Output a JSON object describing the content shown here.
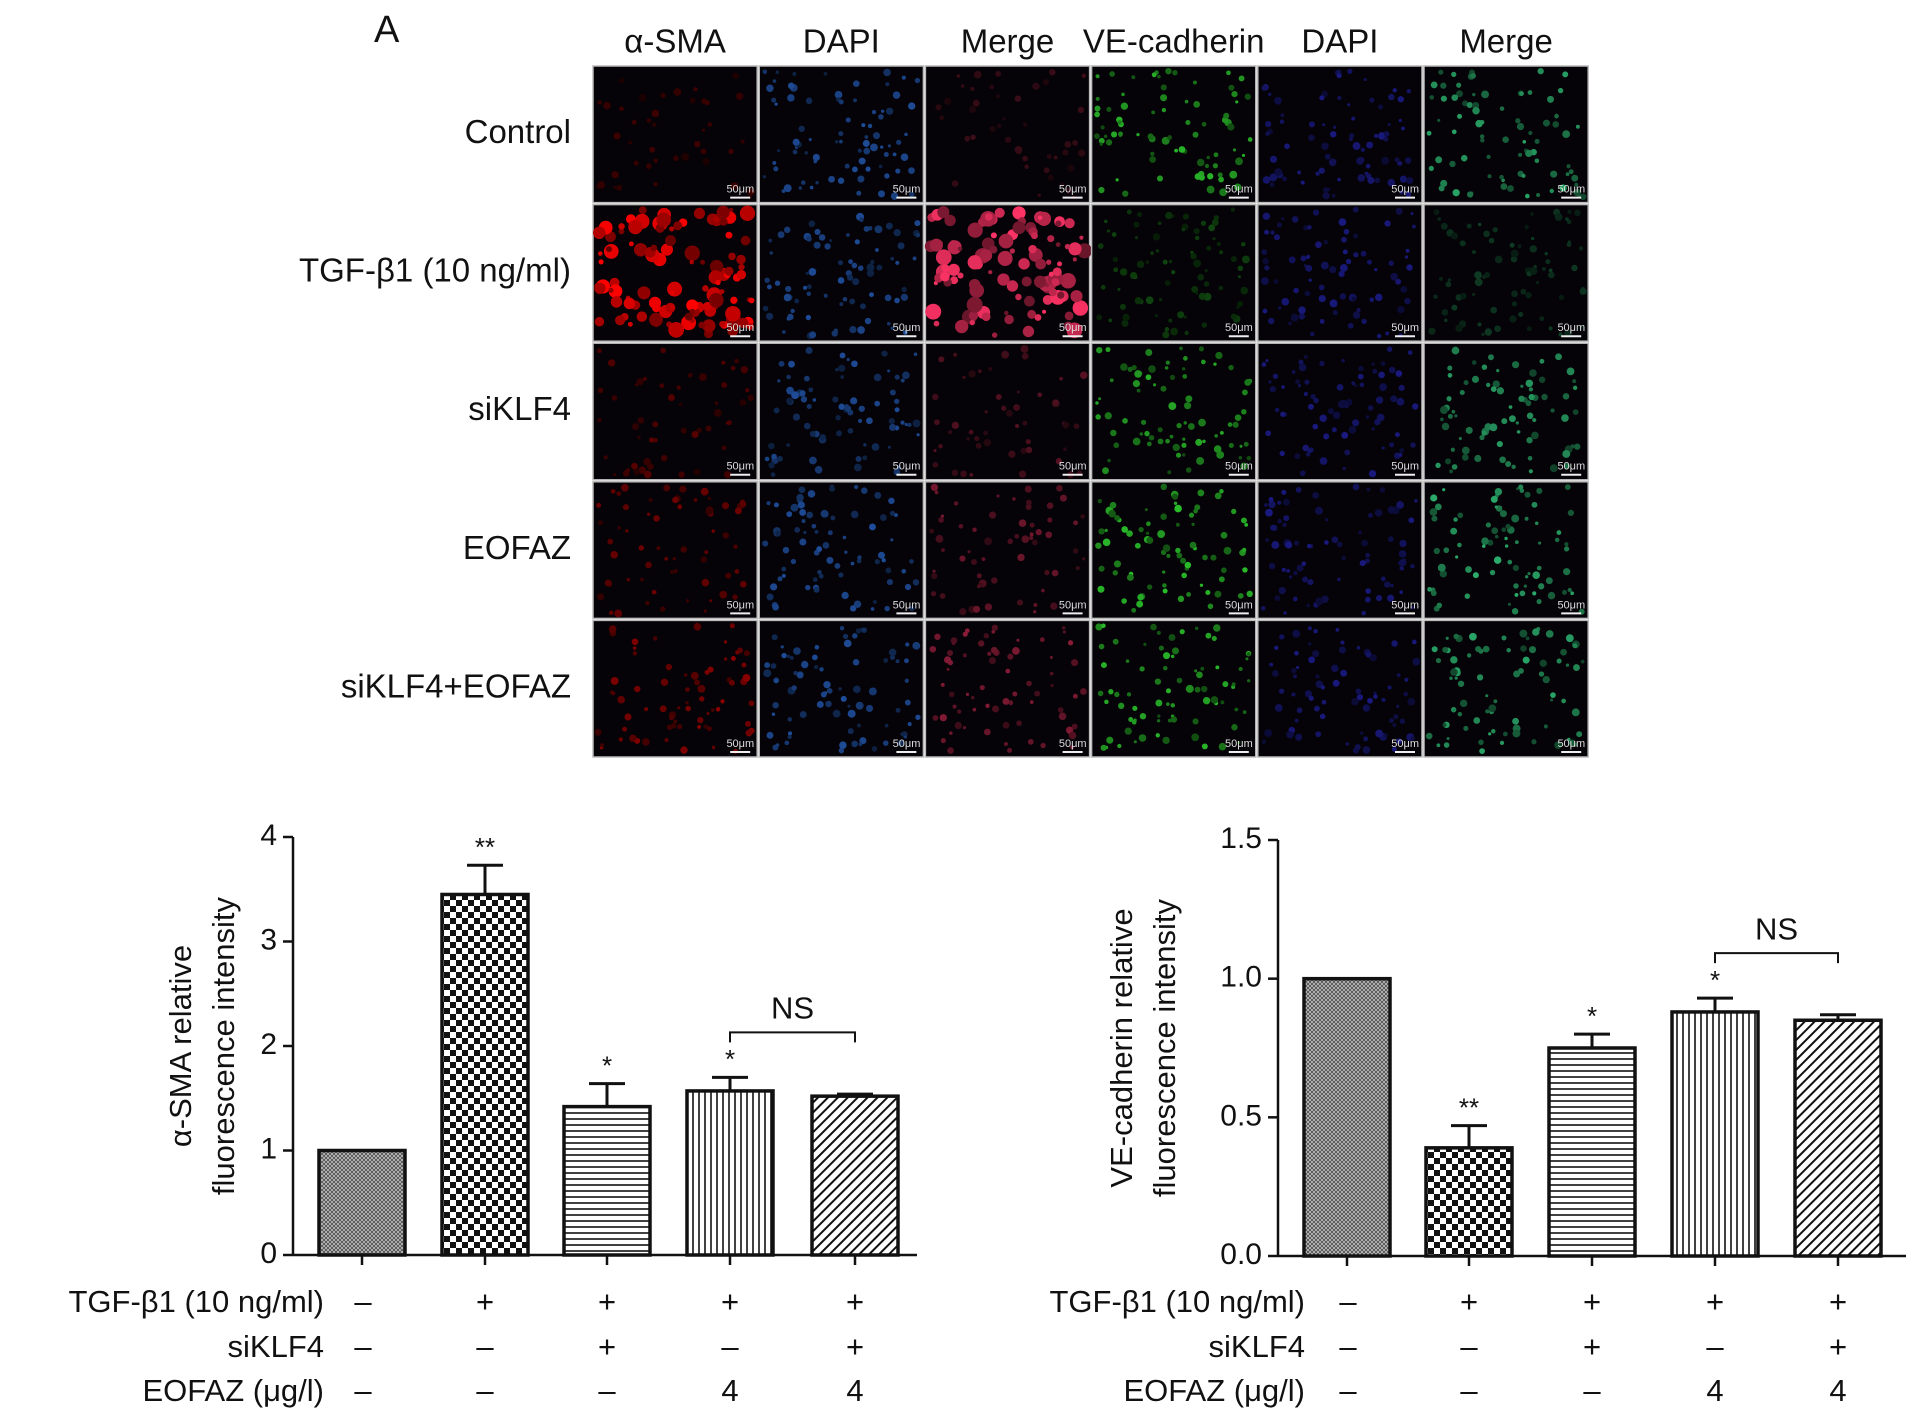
{
  "panel": {
    "label": "A",
    "columns": [
      "α-SMA",
      "DAPI",
      "Merge",
      "VE-cadherin",
      "DAPI",
      "Merge"
    ],
    "rows": [
      "Control",
      "TGF-β1 (10 ng/ml)",
      "siKLF4",
      "EOFAZ",
      "siKLF4+EOFAZ"
    ],
    "scale_bar": "50μm"
  },
  "chart_data": [
    {
      "type": "bar",
      "ylabel": [
        "α-SMA relative",
        "fluorescence intensity"
      ],
      "values": [
        1.0,
        3.45,
        1.42,
        1.57,
        1.52
      ],
      "errors": [
        0,
        0.28,
        0.22,
        0.13,
        0.02
      ],
      "significance": [
        null,
        "**",
        "*",
        "*",
        null
      ],
      "bracket": {
        "label": "NS",
        "span": [
          3,
          4
        ]
      },
      "patterns": [
        "crosshatch",
        "checker",
        "horizontal",
        "vertical",
        "diagonal"
      ],
      "ylim": [
        0,
        4
      ],
      "yticks": [
        0,
        1,
        2,
        3,
        4
      ],
      "conditions": [
        {
          "name": "TGF-β1 (10 ng/ml)",
          "levels": [
            "–",
            "+",
            "+",
            "+",
            "+"
          ]
        },
        {
          "name": "siKLF4",
          "levels": [
            "–",
            "–",
            "+",
            "–",
            "+"
          ]
        },
        {
          "name": "EOFAZ (μg/l)",
          "levels": [
            "–",
            "–",
            "–",
            "4",
            "4"
          ]
        }
      ]
    },
    {
      "type": "bar",
      "ylabel": [
        "VE-cadherin relative",
        "fluorescence intensity"
      ],
      "values": [
        1.0,
        0.39,
        0.75,
        0.88,
        0.85
      ],
      "errors": [
        0,
        0.08,
        0.05,
        0.05,
        0.02
      ],
      "significance": [
        null,
        "**",
        "*",
        "*",
        null
      ],
      "bracket": {
        "label": "NS",
        "span": [
          3,
          4
        ]
      },
      "patterns": [
        "crosshatch",
        "checker",
        "horizontal",
        "vertical",
        "diagonal"
      ],
      "ylim": [
        0,
        1.5
      ],
      "yticks": [
        {
          "value": 0,
          "label": "0.0"
        },
        0.5,
        {
          "value": 1,
          "label": "1.0"
        },
        1.5
      ],
      "conditions": [
        {
          "name": "TGF-β1 (10 ng/ml)",
          "levels": [
            "–",
            "+",
            "+",
            "+",
            "+"
          ]
        },
        {
          "name": "siKLF4",
          "levels": [
            "–",
            "–",
            "+",
            "–",
            "+"
          ]
        },
        {
          "name": "EOFAZ (μg/l)",
          "levels": [
            "–",
            "–",
            "–",
            "4",
            "4"
          ]
        }
      ]
    }
  ]
}
